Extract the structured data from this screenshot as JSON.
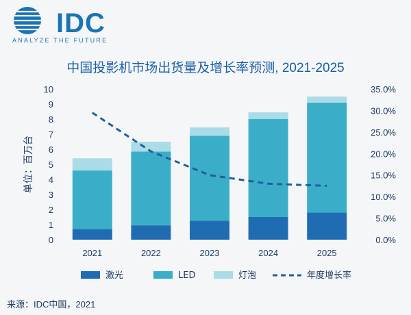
{
  "brand": {
    "name": "IDC",
    "tagline": "ANALYZE THE FUTURE"
  },
  "source": "来源：IDC中国，2021",
  "chart_data": {
    "type": "bar",
    "stacked": true,
    "title": "中国投影机市场出货量及增长率预测, 2021-2025",
    "ylabel": "单位：百万台",
    "categories": [
      "2021",
      "2022",
      "2023",
      "2024",
      "2025"
    ],
    "ylim": [
      0,
      10
    ],
    "y_ticks": [
      "0",
      "1",
      "2",
      "3",
      "4",
      "5",
      "6",
      "7",
      "8",
      "9",
      "10"
    ],
    "y2lim": [
      0,
      35
    ],
    "y2_ticks": [
      "0.0%",
      "5.0%",
      "10.0%",
      "15.0%",
      "20.0%",
      "25.0%",
      "30.0%",
      "35.0%"
    ],
    "series": [
      {
        "name": "激光",
        "values": [
          0.7,
          0.95,
          1.25,
          1.5,
          1.8
        ],
        "color": "#1f6cb3"
      },
      {
        "name": "LED",
        "values": [
          3.9,
          4.9,
          5.65,
          6.5,
          7.3
        ],
        "color": "#3aaec9"
      },
      {
        "name": "灯泡",
        "values": [
          0.8,
          0.65,
          0.55,
          0.45,
          0.4
        ],
        "color": "#a9dce7"
      }
    ],
    "line_series": {
      "name": "年度增长率",
      "axis": "right",
      "values": [
        29.5,
        20.5,
        15.0,
        13.0,
        12.5
      ],
      "color": "#1f5f9e"
    },
    "legend_position": "bottom",
    "grid": false
  }
}
